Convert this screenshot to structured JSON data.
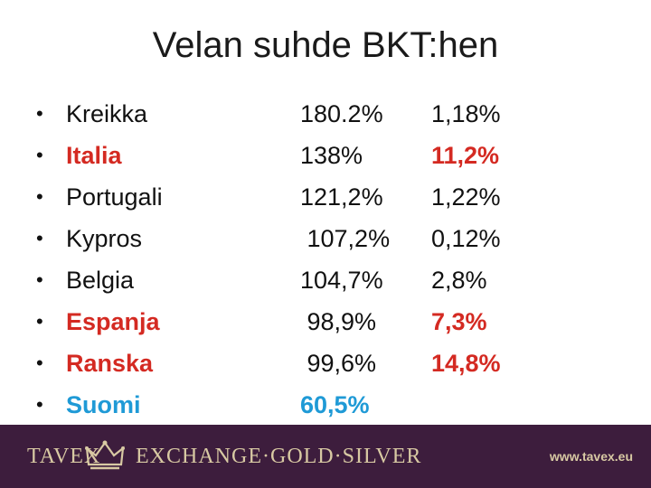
{
  "slide": {
    "title": "Velan suhde BKT:hen",
    "rows": [
      {
        "country": "Kreikka",
        "debt_gdp": "180.2%",
        "second": "1,18%",
        "style": "normal"
      },
      {
        "country": "Italia",
        "debt_gdp": "138%",
        "second": "11,2%",
        "style": "red"
      },
      {
        "country": "Portugali",
        "debt_gdp": "121,2%",
        "second": "1,22%",
        "style": "normal"
      },
      {
        "country": "Kypros",
        "debt_gdp": " 107,2%",
        "second": "0,12%",
        "style": "normal"
      },
      {
        "country": "Belgia",
        "debt_gdp": "104,7%",
        "second": "2,8%",
        "style": "normal"
      },
      {
        "country": "Espanja",
        "debt_gdp": " 98,9%",
        "second": "7,3%",
        "style": "red"
      },
      {
        "country": "Ranska",
        "debt_gdp": " 99,6%",
        "second": "14,8%",
        "style": "red"
      },
      {
        "country": "Suomi",
        "debt_gdp": "60,5%",
        "second": "",
        "style": "blue"
      }
    ],
    "bullet": "•"
  },
  "footer": {
    "brand_left": "TAVEX",
    "brand_right": "EXCHANGE·GOLD·SILVER",
    "url": "www.tavex.eu",
    "logo_icon": "crown-icon",
    "background": "#3d1d3d",
    "text_color": "#d8c9a3"
  },
  "colors": {
    "red": "#d42a22",
    "blue": "#1f9ad6"
  }
}
